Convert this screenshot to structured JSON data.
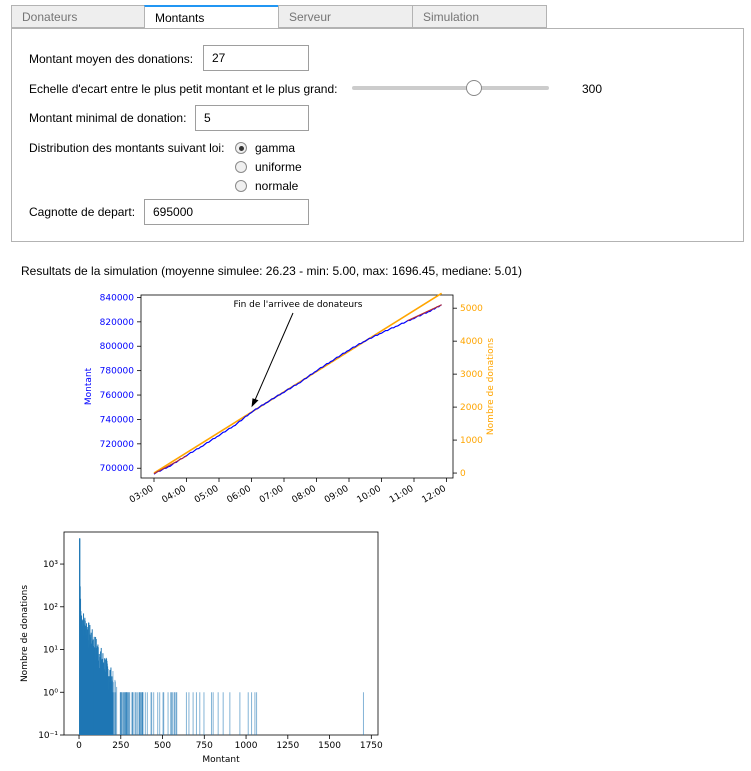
{
  "tabs": [
    {
      "label": "Donateurs",
      "active": false
    },
    {
      "label": "Montants",
      "active": true
    },
    {
      "label": "Serveur",
      "active": false
    },
    {
      "label": "Simulation",
      "active": false
    }
  ],
  "form": {
    "mean_label": "Montant moyen des donations:",
    "mean_value": "27",
    "scale_label": "Echelle d'ecart entre le plus petit montant et le plus grand:",
    "scale_value": "300",
    "scale_fraction": 0.62,
    "min_label": "Montant minimal de donation:",
    "min_value": "5",
    "dist_label": "Distribution des montants suivant loi:",
    "dist_options": [
      {
        "label": "gamma",
        "checked": true
      },
      {
        "label": "uniforme",
        "checked": false
      },
      {
        "label": "normale",
        "checked": false
      }
    ],
    "pot_label": "Cagnotte de depart:",
    "pot_value": "695000"
  },
  "results": {
    "summary": "Resultats de la simulation (moyenne simulee: 26.23 - min: 5.00, max: 1696.45, mediane: 5.01)"
  },
  "colors": {
    "tab_accent": "#2196f3",
    "left_series": "#0000ff",
    "right_series": "#ffa500",
    "histogram": "#1f77b4"
  },
  "chart_data": [
    {
      "type": "line",
      "annotation": "Fin de l'arrivee de donateurs",
      "xlabel": "",
      "x_ticks": [
        "03:00",
        "04:00",
        "05:00",
        "06:00",
        "07:00",
        "08:00",
        "09:00",
        "10:00",
        "11:00",
        "12:00"
      ],
      "ylabel_left": "Montant",
      "ylabel_right": "Nombre de donations",
      "ylim_left": [
        692000,
        842000
      ],
      "ylim_right": [
        -150,
        5400
      ],
      "y_ticks_left": [
        "700000",
        "720000",
        "740000",
        "760000",
        "780000",
        "800000",
        "820000",
        "840000"
      ],
      "y_ticks_right": [
        "0",
        "1000",
        "2000",
        "3000",
        "4000",
        "5000"
      ],
      "series": [
        {
          "name": "Montant",
          "axis": "left",
          "x_hours": [
            3.0,
            3.5,
            4.0,
            4.5,
            5.0,
            5.5,
            6.0,
            6.5,
            7.0,
            7.5,
            8.0,
            8.5,
            9.0,
            9.5,
            10.0,
            10.5,
            11.0,
            11.5,
            11.85
          ],
          "values": [
            695500,
            702000,
            710500,
            718500,
            727000,
            735500,
            746000,
            754500,
            762500,
            770500,
            780000,
            788500,
            797000,
            804500,
            811000,
            817000,
            823000,
            829000,
            834000
          ]
        },
        {
          "name": "Nombre de donations",
          "axis": "right",
          "x_hours": [
            3.0,
            11.85
          ],
          "values": [
            0,
            5450
          ]
        }
      ],
      "annotation_point": {
        "x_hours": 6.0,
        "y": 750000
      }
    },
    {
      "type": "bar",
      "xlabel": "Montant",
      "ylabel": "Nombre de donations",
      "y_scale": "log",
      "xlim": [
        -90,
        1790
      ],
      "ylim_log10": [
        -1,
        3.75
      ],
      "x_ticks": [
        "0",
        "250",
        "500",
        "750",
        "1000",
        "1250",
        "1500",
        "1750"
      ],
      "y_ticks": [
        "10⁻¹",
        "10⁰",
        "10¹",
        "10²",
        "10³"
      ]
    }
  ]
}
